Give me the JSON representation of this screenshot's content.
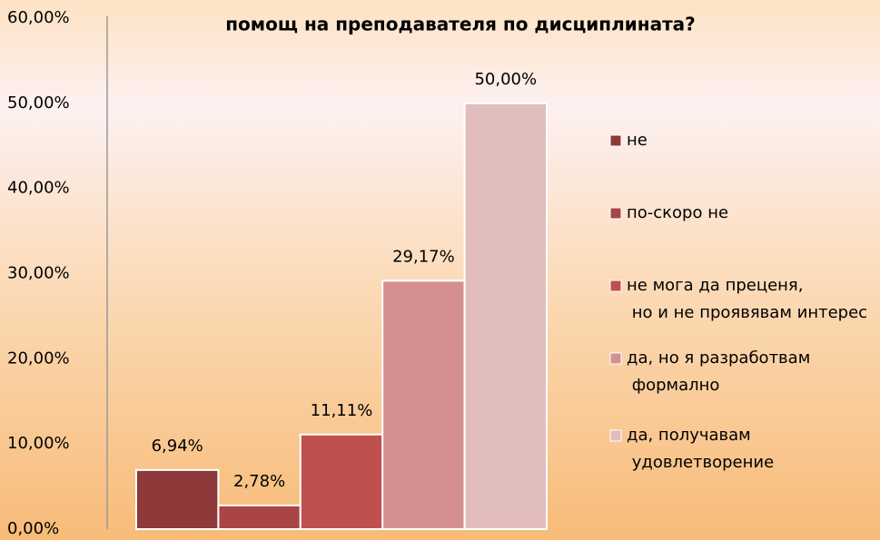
{
  "chart_data": {
    "type": "bar",
    "title": "помощ на преподавателя по дисциплината?",
    "categories": [
      null
    ],
    "series": [
      {
        "name": "не",
        "color": "#8e3a3a",
        "values": [
          6.94
        ],
        "value_labels": [
          "6,94%"
        ]
      },
      {
        "name": "по-скоро не",
        "color": "#a94545",
        "values": [
          2.78
        ],
        "value_labels": [
          "2,78%"
        ]
      },
      {
        "name": "не мога да преценя, но и не проявявам интерес",
        "color": "#c0504d",
        "values": [
          11.11
        ],
        "value_labels": [
          "11,11%"
        ]
      },
      {
        "name": "да, но я разработвам формално",
        "color": "#d49090",
        "values": [
          29.17
        ],
        "value_labels": [
          "29,17%"
        ]
      },
      {
        "name": "да, получавам удовлетворение",
        "color": "#e2bdbd",
        "values": [
          50
        ],
        "value_labels": [
          "50,00%"
        ]
      }
    ],
    "ylim": [
      0,
      60
    ],
    "yticks": [
      {
        "value": 0,
        "label": "0,00%"
      },
      {
        "value": 10,
        "label": "10,00%"
      },
      {
        "value": 20,
        "label": "20,00%"
      },
      {
        "value": 30,
        "label": "30,00%"
      },
      {
        "value": 40,
        "label": "40,00%"
      },
      {
        "value": 50,
        "label": "50,00%"
      },
      {
        "value": 60,
        "label": "60,00%"
      }
    ],
    "legend": "right"
  }
}
